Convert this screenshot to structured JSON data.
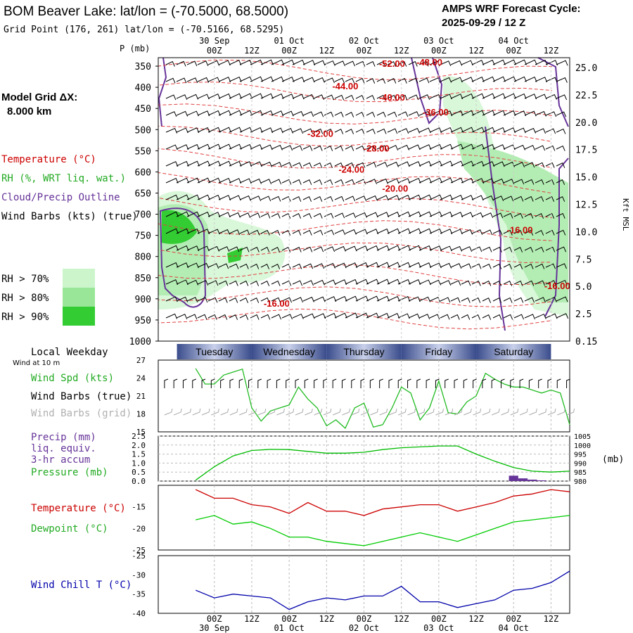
{
  "header": {
    "title": "BOM Beaver Lake:  lat/lon = (-70.5000, 68.5000)",
    "subtitle": "Grid Point (176, 261) lat/lon = (-70.5166, 68.5295)",
    "cycle_label": "AMPS WRF Forecast Cycle:",
    "cycle_value": "2025-09-29 / 12  Z"
  },
  "left_panel": {
    "model_grid_label": "Model Grid ΔX:",
    "model_grid_value": "8.000 km",
    "legend_temperature": "Temperature (°C)",
    "legend_rh": "RH (%, WRT liq. wat.)",
    "legend_cloud": "Cloud/Precip Outline",
    "legend_wind": "Wind Barbs (kts) (true)",
    "rh_keys": [
      {
        "label": "RH > 70%",
        "color": "#ccf5cc"
      },
      {
        "label": "RH > 80%",
        "color": "#99e699"
      },
      {
        "label": "RH > 90%",
        "color": "#33cc33"
      }
    ],
    "local_weekday": "Local Weekday",
    "wind_at": "Wind at 10 m",
    "wind_spd_label": "Wind Spd (kts)",
    "wind_barbs_true": "Wind Barbs (true)",
    "wind_barbs_grid": "Wind Barbs (grid)",
    "precip_label": "Precip (mm)",
    "precip_sub1": "liq. equiv.",
    "precip_sub2": "3-hr accum",
    "pressure_label": "Pressure (mb)",
    "temp_label": "Temperature (°C)",
    "dewpoint_label": "Dewpoint (°C)",
    "windchill_label": "Wind Chill T (°C)"
  },
  "colors": {
    "temperature": "#cc0000",
    "rh": "#33cc33",
    "cloud": "#663399",
    "wind": "#000000",
    "grid_barb": "#aaaaaa",
    "precip": "#663399",
    "pressure": "#00bb00",
    "dewpoint": "#00cc00",
    "windchill": "#0000aa",
    "day_band_dark": "#3a4c8c",
    "day_band_light": "#c8d0ea"
  },
  "chart_data": [
    {
      "type": "cross-section",
      "title": "Time-height cross section",
      "ylabel_left": "P (mb)",
      "ylabel_right": "Kft MSL",
      "pressure_ticks": [
        350,
        400,
        450,
        500,
        550,
        600,
        650,
        700,
        750,
        800,
        850,
        900,
        950,
        1000
      ],
      "height_ticks": [
        "25.0",
        "22.5",
        "20.0",
        "17.5",
        "15.0",
        "12.5",
        "10.0",
        "7.5",
        "5.0",
        "2.5",
        "0.15"
      ],
      "time_ticks_top": [
        "00Z",
        "12Z",
        "00Z",
        "12Z",
        "00Z",
        "12Z",
        "00Z",
        "12Z",
        "00Z",
        "12Z"
      ],
      "date_ticks_top": [
        "30 Sep",
        "01 Oct",
        "02 Oct",
        "03 Oct",
        "04 Oct"
      ],
      "forecast_hours": [
        0,
        120
      ],
      "temperature_labels": [
        {
          "text": "-52.00",
          "hour": 63,
          "p": 345
        },
        {
          "text": "-48.00",
          "hour": 75,
          "p": 342
        },
        {
          "text": "-44.00",
          "hour": 48,
          "p": 398
        },
        {
          "text": "-40.00",
          "hour": 63,
          "p": 425
        },
        {
          "text": "-36.00",
          "hour": 77,
          "p": 460
        },
        {
          "text": "-32.00",
          "hour": 40,
          "p": 510
        },
        {
          "text": "-28.00",
          "hour": 58,
          "p": 545
        },
        {
          "text": "-24.00",
          "hour": 50,
          "p": 595
        },
        {
          "text": "-20.00",
          "hour": 64,
          "p": 640
        },
        {
          "text": "-16.00",
          "hour": 104,
          "p": 738
        },
        {
          "text": "-16.00",
          "hour": 26,
          "p": 912
        },
        {
          "text": "-16.00",
          "hour": 116,
          "p": 870
        }
      ]
    },
    {
      "type": "line",
      "title": "Wind Spd (kts)",
      "ylim": [
        15,
        27
      ],
      "yticks": [
        15,
        18,
        21,
        24,
        27
      ],
      "x": [
        0,
        3,
        6,
        9,
        12,
        15,
        18,
        21,
        24,
        27,
        30,
        33,
        36,
        39,
        42,
        45,
        48,
        51,
        54,
        57,
        60,
        63,
        66,
        69,
        72,
        75,
        78,
        81,
        84,
        87,
        90,
        93,
        96,
        99,
        102,
        105,
        108,
        111,
        114,
        117,
        120
      ],
      "series": [
        {
          "name": "Wind Spd",
          "values": [
            25.6,
            23,
            23,
            24.5,
            25,
            25.5,
            19,
            16.8,
            18.5,
            19,
            19.5,
            22.5,
            20.5,
            19,
            16,
            17,
            15.6,
            19,
            19.8,
            15.8,
            16.2,
            19,
            22.5,
            21.5,
            17,
            19,
            23.5,
            18.2,
            18,
            20,
            21,
            24.8,
            23.8,
            23,
            22.5,
            22.5,
            22,
            21.5,
            22,
            21.5,
            16.2
          ]
        }
      ]
    },
    {
      "type": "line",
      "title": "Precip and Pressure",
      "precip_ylim": [
        0,
        2.5
      ],
      "precip_ticks": [
        "0.0",
        "0.5",
        "1.0",
        "1.5",
        "2.0",
        "2.5"
      ],
      "pressure_ylim": [
        980,
        1005
      ],
      "pressure_ticks": [
        980,
        985,
        990,
        995,
        1000,
        1005
      ],
      "x": [
        0,
        6,
        12,
        18,
        24,
        30,
        36,
        42,
        48,
        54,
        60,
        66,
        72,
        78,
        84,
        90,
        96,
        102,
        108,
        114,
        120
      ],
      "series": [
        {
          "name": "Pressure",
          "values": [
            980.5,
            988,
            994,
            997,
            997.6,
            997.5,
            996.5,
            995.5,
            995.5,
            996,
            997.5,
            998.5,
            999,
            999.5,
            999.5,
            995,
            991,
            987.5,
            985.5,
            985,
            985.5
          ]
        },
        {
          "name": "Precip",
          "bars": [
            {
              "hour": 102,
              "value": 0.3
            },
            {
              "hour": 105,
              "value": 0.15
            },
            {
              "hour": 108,
              "value": 0.08
            },
            {
              "hour": 111,
              "value": 0.04
            }
          ]
        }
      ]
    },
    {
      "type": "line",
      "title": "Temperature and Dewpoint",
      "ylim": [
        -25,
        -10
      ],
      "yticks": [
        -25,
        -20,
        -15
      ],
      "x": [
        0,
        6,
        12,
        18,
        24,
        30,
        36,
        42,
        48,
        54,
        60,
        66,
        72,
        78,
        84,
        90,
        96,
        102,
        108,
        114,
        120
      ],
      "series": [
        {
          "name": "Temperature",
          "values": [
            -11,
            -13,
            -13,
            -14.5,
            -15,
            -16.5,
            -14,
            -16,
            -16,
            -17,
            -15.5,
            -15,
            -14.5,
            -14.5,
            -16,
            -15,
            -14,
            -12.5,
            -12,
            -11,
            -11.5
          ]
        },
        {
          "name": "Dewpoint",
          "values": [
            -18,
            -17,
            -19,
            -18.5,
            -20,
            -22,
            -22,
            -23,
            -23.5,
            -24,
            -23,
            -22,
            -21,
            -22,
            -23,
            -21.5,
            -20,
            -18.5,
            -18,
            -17.5,
            -17
          ]
        }
      ]
    },
    {
      "type": "line",
      "title": "Wind Chill T (°C)",
      "ylim": [
        -40,
        -25
      ],
      "yticks": [
        -40,
        -35,
        -30,
        -25
      ],
      "x": [
        0,
        6,
        12,
        18,
        24,
        30,
        36,
        42,
        48,
        54,
        60,
        66,
        72,
        78,
        84,
        90,
        96,
        102,
        108,
        114,
        120
      ],
      "series": [
        {
          "name": "Wind Chill",
          "values": [
            -34,
            -36,
            -35,
            -35.5,
            -36,
            -39,
            -37,
            -36,
            -36.5,
            -35.5,
            -35.5,
            -33,
            -37,
            -37,
            -38.5,
            -37.5,
            -36.5,
            -34,
            -33.5,
            -32,
            -29
          ]
        }
      ]
    }
  ],
  "weekdays": [
    "Tuesday",
    "Wednesday",
    "Thursday",
    "Friday",
    "Saturday"
  ],
  "bottom_axis": {
    "time_ticks": [
      "00Z",
      "12Z",
      "00Z",
      "12Z",
      "00Z",
      "12Z",
      "00Z",
      "12Z",
      "00Z",
      "12Z"
    ],
    "date_ticks": [
      "30 Sep",
      "01 Oct",
      "02 Oct",
      "03 Oct",
      "04 Oct"
    ]
  }
}
